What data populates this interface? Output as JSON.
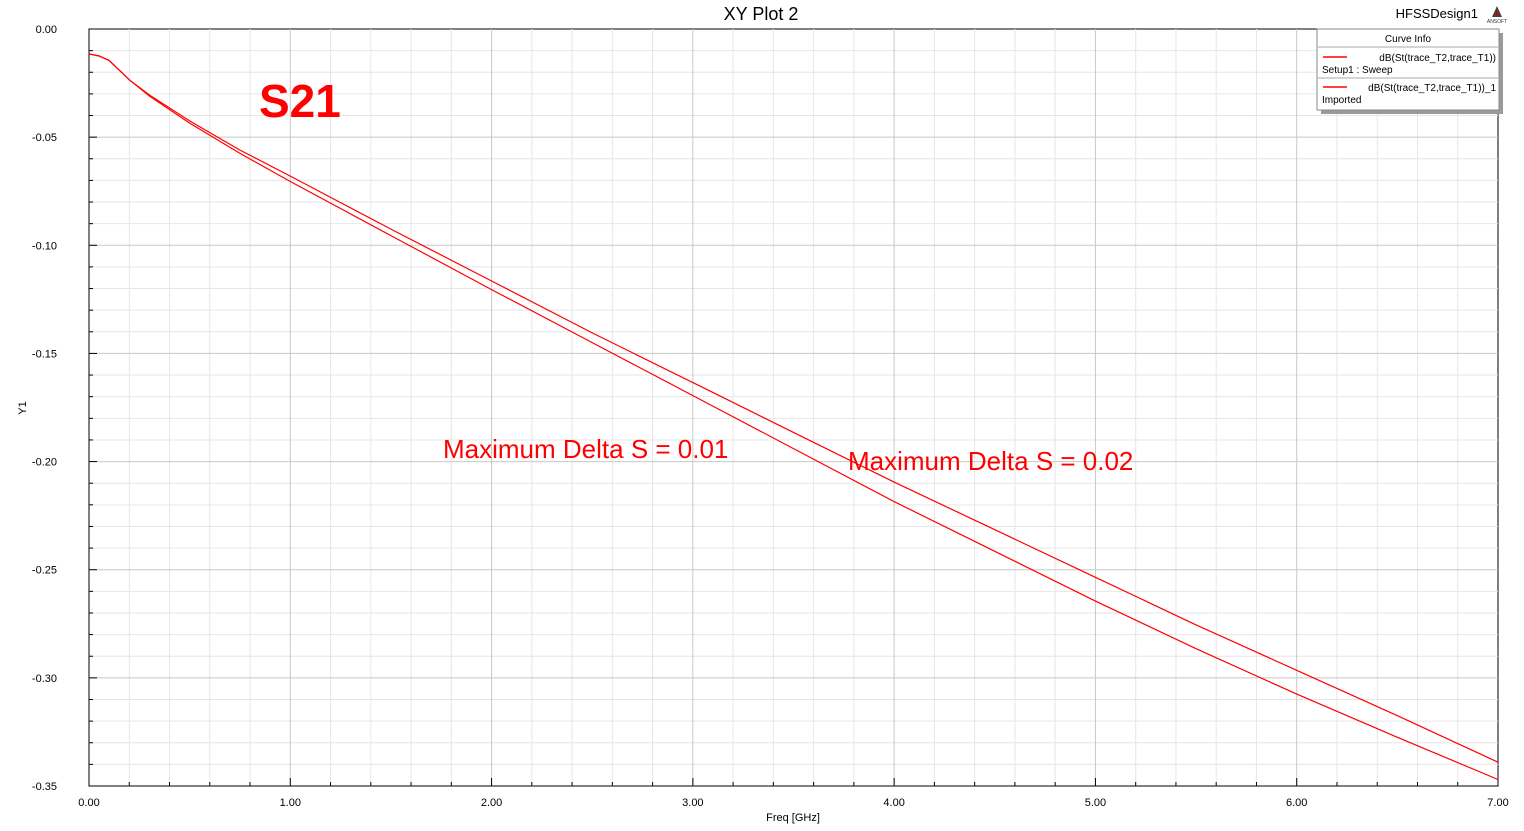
{
  "header": {
    "design_name": "HFSSDesign1",
    "logo_text": "ANSOFT"
  },
  "chart_data": {
    "type": "line",
    "title": "XY Plot 2",
    "xlabel": "Freq [GHz]",
    "ylabel": "Y1",
    "xlim": [
      0,
      7
    ],
    "ylim": [
      -0.35,
      0
    ],
    "x_ticks": [
      "0.00",
      "1.00",
      "2.00",
      "3.00",
      "4.00",
      "5.00",
      "6.00",
      "7.00"
    ],
    "y_ticks": [
      "0.00",
      "-0.05",
      "-0.10",
      "-0.15",
      "-0.20",
      "-0.25",
      "-0.30",
      "-0.35"
    ],
    "grid": true,
    "legend": {
      "title": "Curve Info",
      "placement": "top-right",
      "entries": [
        {
          "name": "dB(St(trace_T2,trace_T1))",
          "sub": "Setup1 : Sweep",
          "color": "#ff0000"
        },
        {
          "name": "dB(St(trace_T2,trace_T1))_1",
          "sub": "Imported",
          "color": "#ff0000"
        }
      ]
    },
    "annotations": [
      {
        "text": "S21",
        "style": "big"
      },
      {
        "text": "Maximum Delta S = 0.01",
        "style": "normal"
      },
      {
        "text": "Maximum Delta S = 0.02",
        "style": "normal"
      }
    ],
    "series": [
      {
        "name": "dB(St(trace_T2,trace_T1))",
        "color": "#ff0000",
        "x": [
          0,
          0.05,
          0.1,
          0.15,
          0.2,
          0.3,
          0.5,
          0.75,
          1.0,
          1.5,
          2.0,
          2.5,
          3.0,
          3.5,
          4.0,
          4.5,
          5.0,
          5.5,
          6.0,
          6.5,
          7.0
        ],
        "y": [
          -0.0115,
          -0.0125,
          -0.0145,
          -0.019,
          -0.0235,
          -0.0305,
          -0.0425,
          -0.056,
          -0.068,
          -0.0925,
          -0.1165,
          -0.1405,
          -0.1635,
          -0.1865,
          -0.2095,
          -0.2315,
          -0.2535,
          -0.2755,
          -0.2965,
          -0.3175,
          -0.339
        ]
      },
      {
        "name": "dB(St(trace_T2,trace_T1))_1",
        "color": "#ff0000",
        "x": [
          0,
          0.05,
          0.1,
          0.15,
          0.2,
          0.3,
          0.5,
          0.75,
          1.0,
          1.5,
          2.0,
          2.5,
          3.0,
          3.5,
          4.0,
          4.5,
          5.0,
          5.5,
          6.0,
          6.5,
          7.0
        ],
        "y": [
          -0.0115,
          -0.0125,
          -0.0145,
          -0.019,
          -0.0235,
          -0.031,
          -0.0435,
          -0.0575,
          -0.0705,
          -0.0955,
          -0.1205,
          -0.145,
          -0.1695,
          -0.194,
          -0.2185,
          -0.2415,
          -0.2645,
          -0.2865,
          -0.3075,
          -0.3275,
          -0.347
        ]
      }
    ]
  }
}
